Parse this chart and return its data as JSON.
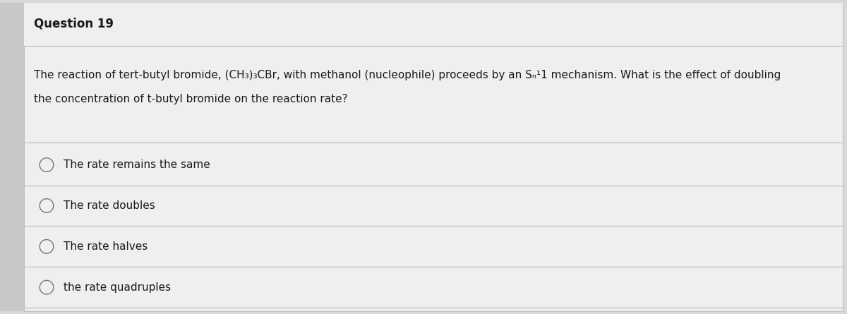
{
  "title": "Question 19",
  "question_line1": "The reaction of tert-butyl bromide, (CH₃)₃CBr, with methanol (nucleophile) proceeds by an Sₙ¹1 mechanism. What is the effect of doubling",
  "question_line2": "the concentration of t-butyl bromide on the reaction rate?",
  "options": [
    "The rate remains the same",
    "The rate doubles",
    "The rate halves",
    "the rate quadruples"
  ],
  "bg_color": "#d8d8d8",
  "content_bg": "#efefef",
  "text_color": "#1a1a1a",
  "separator_color": "#c0c0c0",
  "left_bar_color": "#999999",
  "title_fontsize": 12,
  "question_fontsize": 11,
  "option_fontsize": 11
}
